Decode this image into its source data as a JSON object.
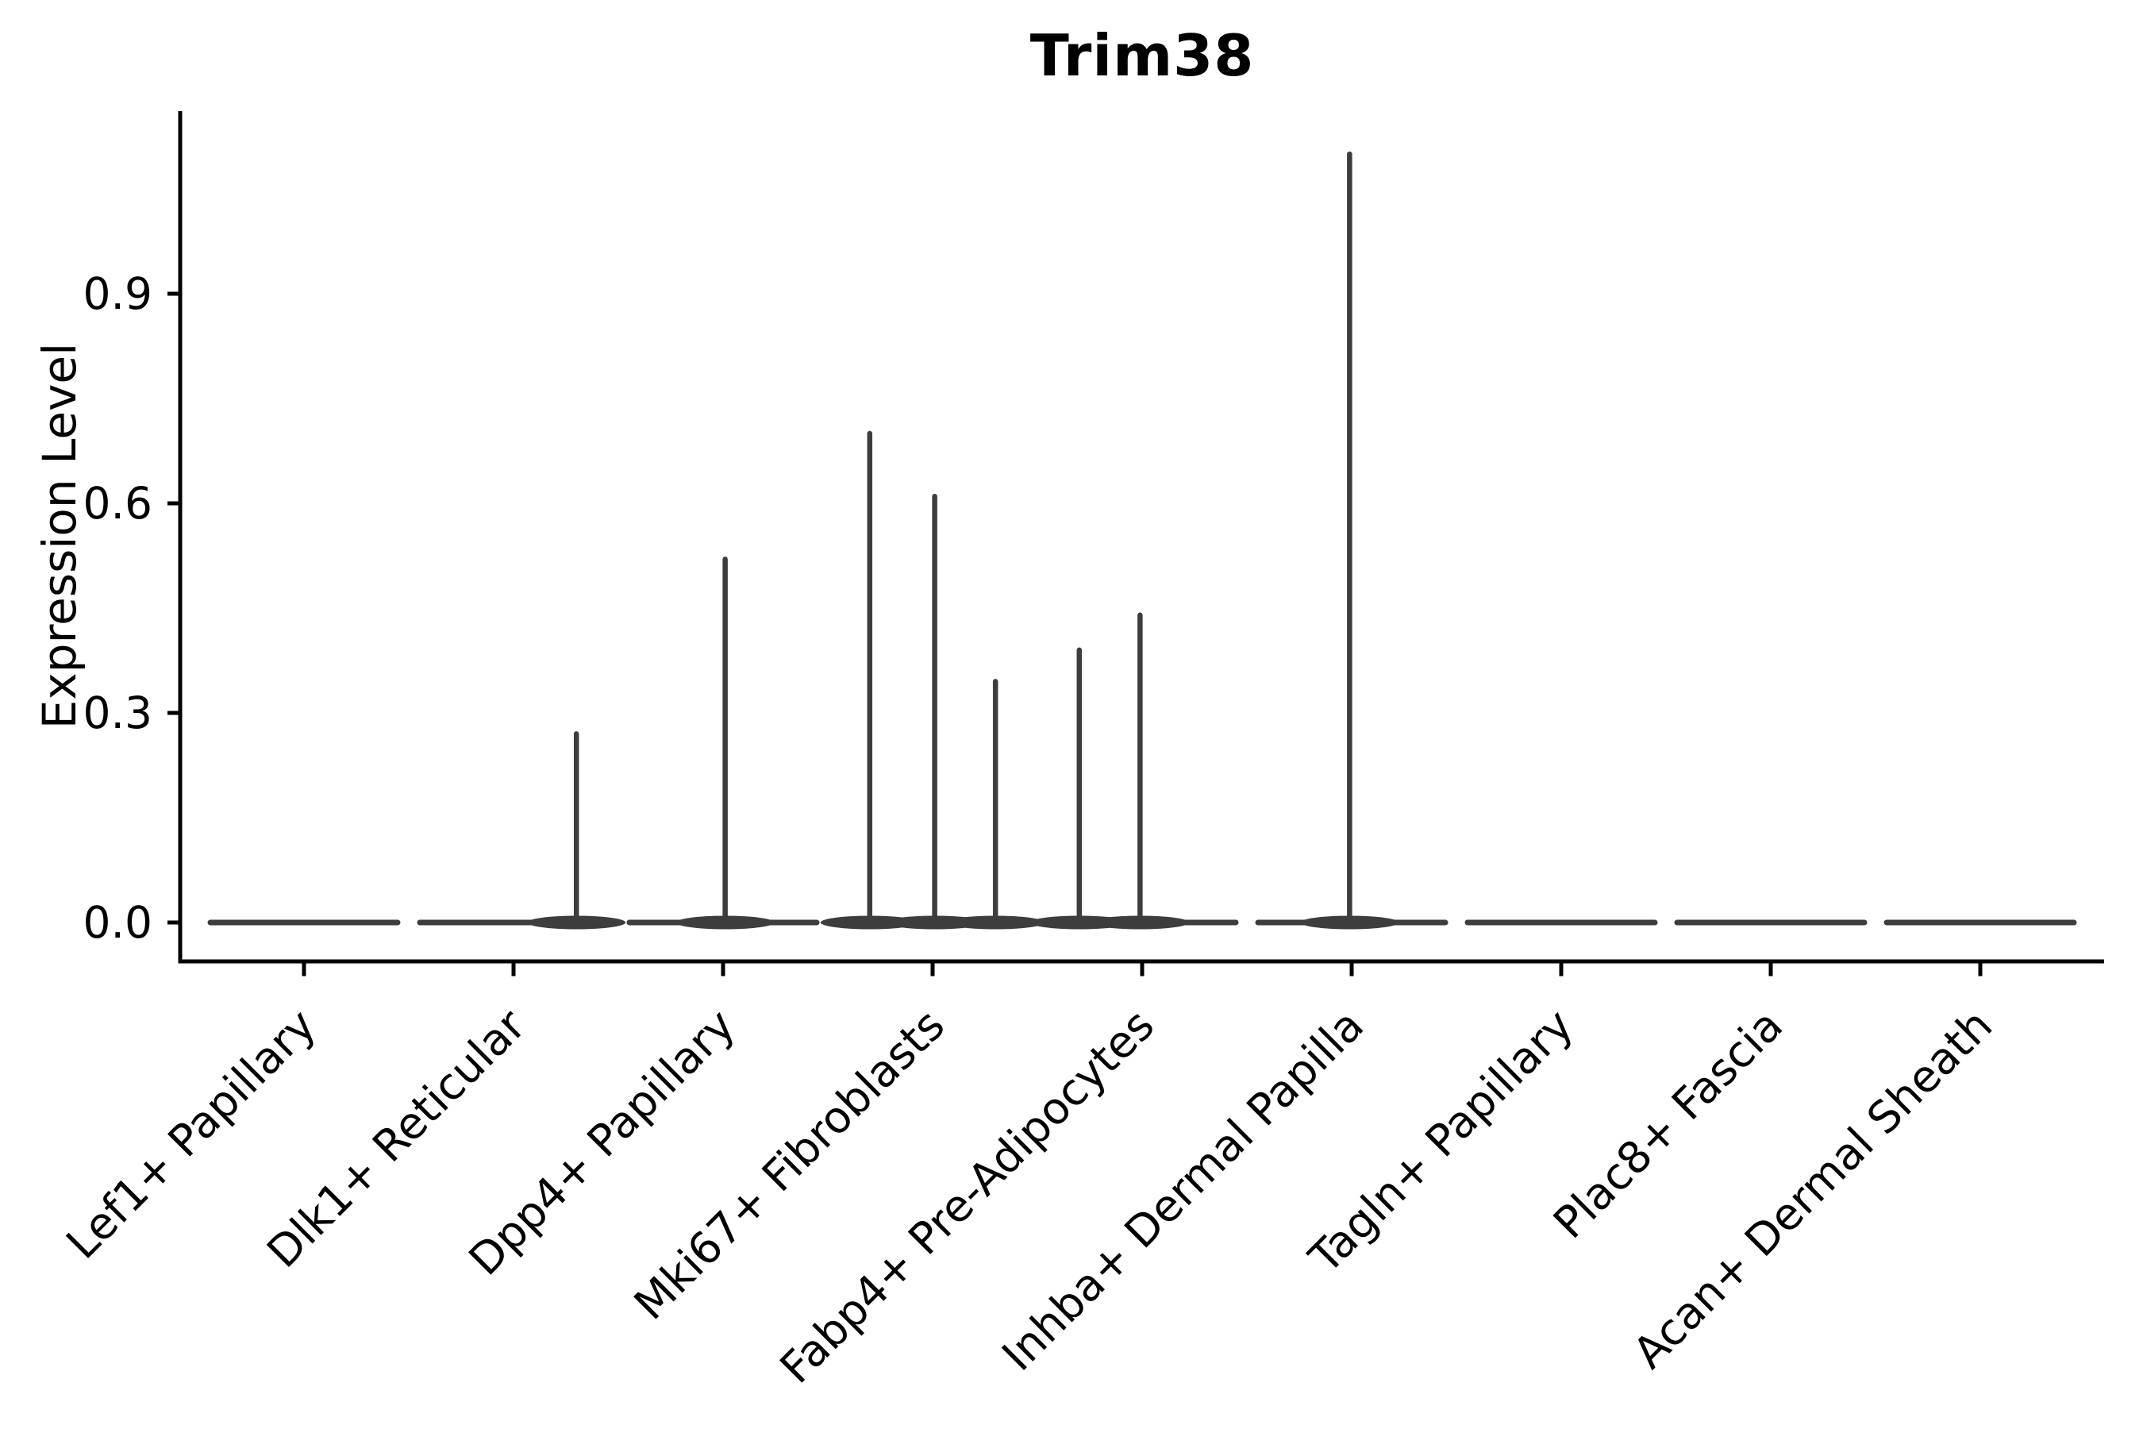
{
  "figure": {
    "title": "Trim38",
    "y_axis": {
      "label": "Expression Level",
      "tick_labels": [
        "0.0",
        "0.3",
        "0.6",
        "0.9"
      ]
    },
    "x_axis": {
      "tick_labels": [
        "Lef1+ Papillary",
        "Dlk1+ Reticular",
        "Dpp4+ Papillary",
        "Mki67+ Fibroblasts",
        "Fabp4+ Pre-Adipocytes",
        "Inhba+ Dermal Papilla",
        "Tagln+ Papillary",
        "Plac8+ Fascia",
        "Acan+ Dermal Sheath"
      ]
    }
  },
  "chart_data": {
    "type": "violin",
    "title": "Trim38",
    "xlabel": "",
    "ylabel": "Expression Level",
    "categories": [
      "Lef1+ Papillary",
      "Dlk1+ Reticular",
      "Dpp4+ Papillary",
      "Mki67+ Fibroblasts",
      "Fabp4+ Pre-Adipocytes",
      "Inhba+ Dermal Papilla",
      "Tagln+ Papillary",
      "Plac8+ Fascia",
      "Acan+ Dermal Sheath"
    ],
    "yticks": [
      0.0,
      0.3,
      0.6,
      0.9
    ],
    "ylim": [
      -0.06,
      1.16
    ],
    "grid": false,
    "legend_position": "none",
    "colors": {
      "violin_line": "#3d3d3d",
      "axis_line": "#000000",
      "text": "#000000",
      "background": "#ffffff"
    },
    "violins": [
      {
        "category": "Lef1+ Papillary",
        "max_expression": 0.0,
        "spikes": []
      },
      {
        "category": "Dlk1+ Reticular",
        "max_expression": 0.27,
        "spikes": [
          {
            "offset": 0.3,
            "value": 0.27
          }
        ]
      },
      {
        "category": "Dpp4+ Papillary",
        "max_expression": 0.52,
        "spikes": [
          {
            "offset": 0.01,
            "value": 0.52
          }
        ]
      },
      {
        "category": "Mki67+ Fibroblasts",
        "max_expression": 0.7,
        "spikes": [
          {
            "offset": -0.3,
            "value": 0.7
          },
          {
            "offset": 0.01,
            "value": 0.61
          },
          {
            "offset": 0.3,
            "value": 0.345
          }
        ]
      },
      {
        "category": "Fabp4+ Pre-Adipocytes",
        "max_expression": 0.44,
        "spikes": [
          {
            "offset": -0.3,
            "value": 0.39
          },
          {
            "offset": -0.01,
            "value": 0.44
          }
        ]
      },
      {
        "category": "Inhba+ Dermal Papilla",
        "max_expression": 1.1,
        "spikes": [
          {
            "offset": -0.01,
            "value": 1.1
          }
        ]
      },
      {
        "category": "Tagln+ Papillary",
        "max_expression": 0.0,
        "spikes": []
      },
      {
        "category": "Plac8+ Fascia",
        "max_expression": 0.0,
        "spikes": []
      },
      {
        "category": "Acan+ Dermal Sheath",
        "max_expression": 0.0,
        "spikes": []
      }
    ]
  }
}
